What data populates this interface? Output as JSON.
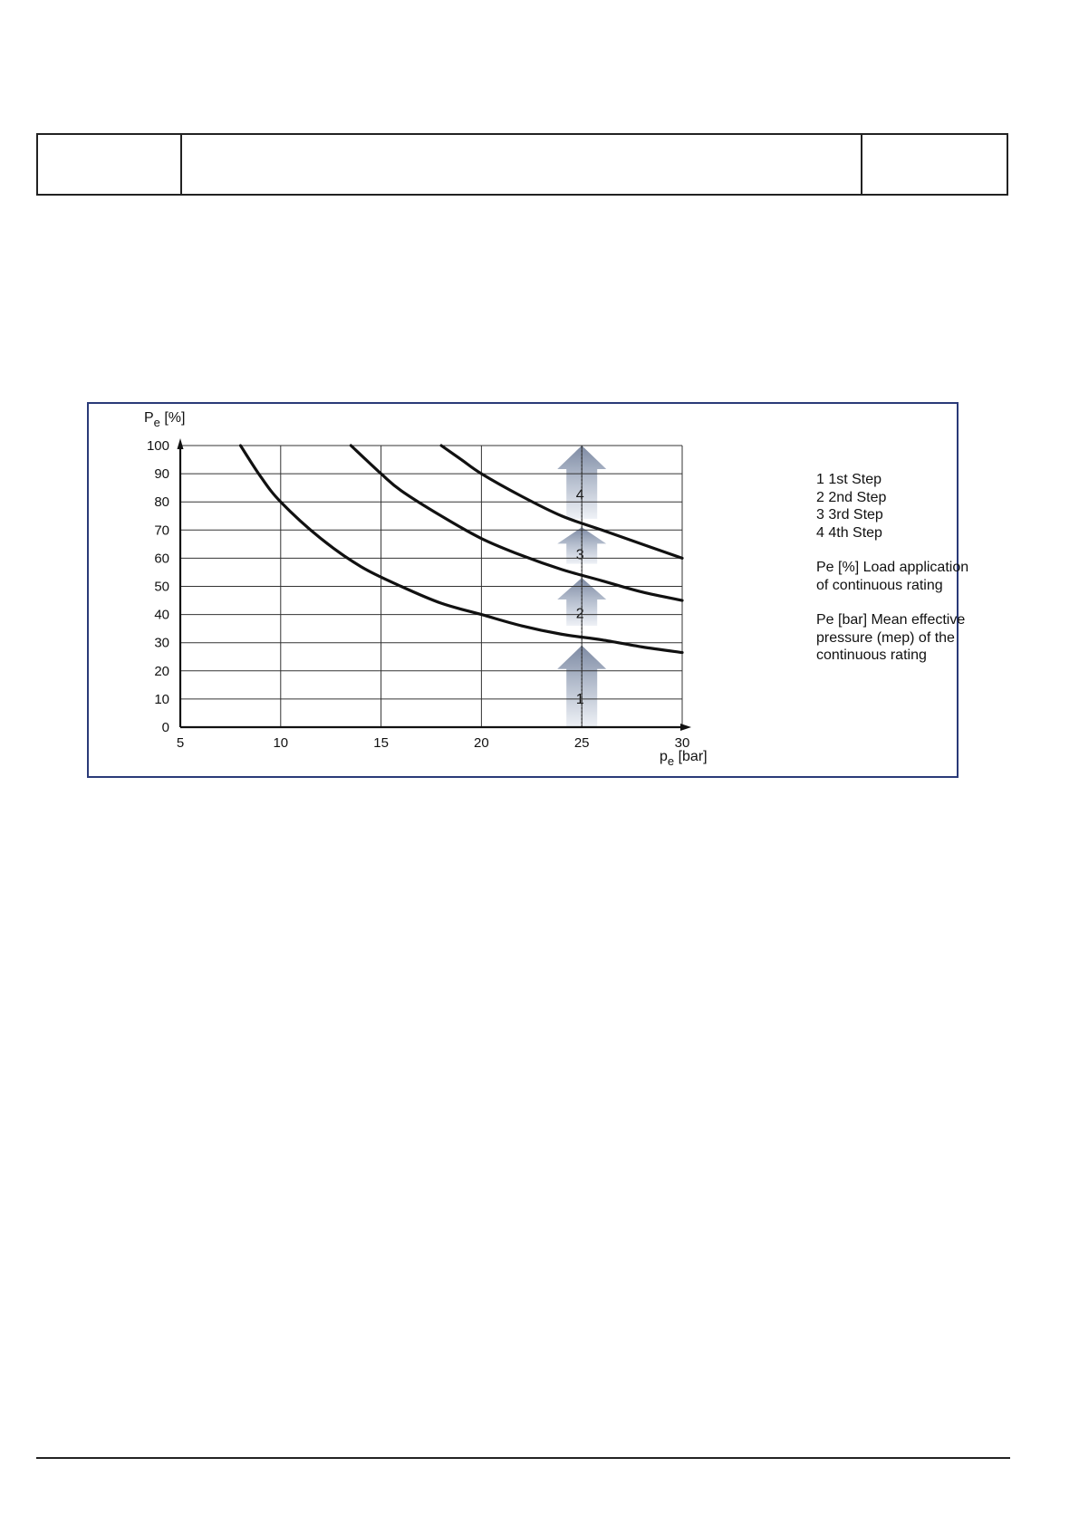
{
  "header": {
    "cell_left": "",
    "cell_middle": "",
    "cell_right": ""
  },
  "legend": {
    "steps": [
      "1 1st Step",
      "2 2nd Step",
      "3 3rd Step",
      "4 4th Step"
    ],
    "pe_percent": [
      "Pe [%] Load application",
      "of continuous rating"
    ],
    "pe_bar": [
      "Pe [bar] Mean effective",
      "pressure (mep) of the",
      "continuous rating"
    ]
  },
  "chart_data": {
    "type": "line",
    "y_axis_label": {
      "main": "P",
      "sub": "e",
      "unit": " [%]"
    },
    "x_axis_label": {
      "main": "p",
      "sub": "e",
      "unit": " [bar]"
    },
    "xlim": [
      5,
      30
    ],
    "ylim": [
      0,
      100
    ],
    "x_ticks": [
      5,
      10,
      15,
      20,
      25,
      30
    ],
    "y_ticks": [
      0,
      10,
      20,
      30,
      40,
      50,
      60,
      70,
      80,
      90,
      100
    ],
    "grid": true,
    "series": [
      {
        "x": [
          8,
          9,
          10,
          12,
          14,
          16,
          18,
          20,
          22,
          24,
          26,
          28,
          30
        ],
        "y": [
          100,
          89,
          80,
          67,
          57,
          50,
          44,
          40,
          36,
          33,
          31,
          28.5,
          26.5
        ]
      },
      {
        "x": [
          13.5,
          15,
          16,
          18,
          20,
          22,
          24,
          26,
          28,
          30
        ],
        "y": [
          100,
          90,
          84,
          75,
          67,
          61,
          56,
          52,
          48,
          45
        ]
      },
      {
        "x": [
          18,
          19,
          20,
          22,
          24,
          26,
          28,
          30
        ],
        "y": [
          100,
          95,
          90,
          82,
          75,
          70,
          65,
          60
        ]
      }
    ],
    "step_arrows": [
      {
        "label": "1",
        "x": 25,
        "y_from": 0,
        "y_to": 29
      },
      {
        "label": "2",
        "x": 25,
        "y_from": 36,
        "y_to": 53
      },
      {
        "label": "3",
        "x": 25,
        "y_from": 58,
        "y_to": 71
      },
      {
        "label": "4",
        "x": 25,
        "y_from": 74,
        "y_to": 100
      }
    ]
  }
}
